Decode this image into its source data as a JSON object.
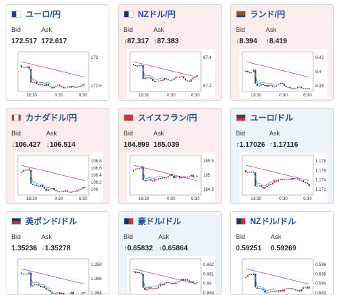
{
  "cards": [
    {
      "pair": "ユーロ/円",
      "bid_label": "Bid",
      "ask_label": "Ask",
      "bid": "172.517",
      "ask": "172.617",
      "bid_arrow": "",
      "ask_arrow": "",
      "bg": "#ffffff",
      "flag": "eu-jp-flag",
      "chart": {
        "yticks": [
          "173",
          "172.5"
        ],
        "xticks": [
          "18:30",
          "0:30",
          "6:30"
        ],
        "ylim": [
          172.15,
          173.3
        ]
      }
    },
    {
      "pair": "NZドル/円",
      "bid_label": "Bid",
      "ask_label": "Ask",
      "bid": "87.317",
      "ask": "87.383",
      "bid_arrow": "↓",
      "ask_arrow": "↑",
      "bg": "#fdecec",
      "flag": "nz-jp-flag",
      "chart": {
        "yticks": [
          "87.4",
          "87.2"
        ],
        "xticks": [
          "18:30",
          "0:30",
          "6:30"
        ],
        "ylim": [
          87.1,
          87.65
        ]
      }
    },
    {
      "pair": "ランド/円",
      "bid_label": "Bid",
      "ask_label": "Ask",
      "bid": "8.394",
      "ask": "8.419",
      "bid_arrow": "↓",
      "ask_arrow": "↑",
      "bg": "#fdecec",
      "flag": "za-jp-flag",
      "chart": {
        "yticks": [
          "8.42",
          "8.4",
          "8.38"
        ],
        "xticks": [
          "18:30",
          "0:30",
          "6:30"
        ],
        "ylim": [
          8.37,
          8.43
        ]
      }
    },
    {
      "pair": "カナダドル/円",
      "bid_label": "Bid",
      "ask_label": "Ask",
      "bid": "106.427",
      "ask": "106.514",
      "bid_arrow": "↓",
      "ask_arrow": "↓",
      "bg": "#fdecec",
      "flag": "ca-jp-flag",
      "chart": {
        "yticks": [
          "106.8",
          "106.6",
          "106.4",
          "106.2",
          "106"
        ],
        "xticks": [
          "18:30",
          "0:30",
          "6:30"
        ],
        "ylim": [
          105.95,
          106.9
        ]
      }
    },
    {
      "pair": "スイスフラン/円",
      "bid_label": "Bid",
      "ask_label": "Ask",
      "bid": "184.899",
      "ask": "185.039",
      "bid_arrow": "",
      "ask_arrow": "",
      "bg": "#fdecec",
      "flag": "ch-jp-flag",
      "chart": {
        "yticks": [
          "185.5",
          "185",
          "184.5"
        ],
        "xticks": [
          "18:30",
          "0:30",
          "6:30"
        ],
        "ylim": [
          184.3,
          186.0
        ]
      }
    },
    {
      "pair": "ユーロ/ドル",
      "bid_label": "Bid",
      "ask_label": "Ask",
      "bid": "1.17026",
      "ask": "1.17116",
      "bid_arrow": "↑",
      "ask_arrow": "↑",
      "bg": "#ecf3fb",
      "flag": "eu-us-flag",
      "chart": {
        "yticks": [
          "1.178",
          "1.176",
          "1.174",
          "1.172"
        ],
        "xticks": [
          "18:30",
          "0:30",
          "6:30"
        ],
        "ylim": [
          1.1695,
          1.1795
        ]
      }
    },
    {
      "pair": "英ポンド/ドル",
      "bid_label": "Bid",
      "ask_label": "Ask",
      "bid": "1.35236",
      "ask": "1.35278",
      "bid_arrow": "",
      "ask_arrow": "↓",
      "bg": "#ffffff",
      "flag": "gb-us-flag",
      "chart": {
        "yticks": [
          "1.358",
          "1.356",
          "1.354"
        ],
        "xticks": [],
        "ylim": [
          1.352,
          1.3595
        ]
      }
    },
    {
      "pair": "豪ドル/ドル",
      "bid_label": "Bid",
      "ask_label": "Ask",
      "bid": "0.65832",
      "ask": "0.65864",
      "bid_arrow": "↑",
      "ask_arrow": "↑",
      "bg": "#ecf3fb",
      "flag": "au-us-flag",
      "chart": {
        "yticks": [
          "0.662",
          "0.661",
          "0.66",
          "0.659"
        ],
        "xticks": [],
        "ylim": [
          0.6585,
          0.6625
        ]
      }
    },
    {
      "pair": "NZドル/ドル",
      "bid_label": "Bid",
      "ask_label": "Ask",
      "bid": "0.59251",
      "ask": "0.59269",
      "bid_arrow": "",
      "ask_arrow": "",
      "bg": "#ffffff",
      "flag": "nz-us-flag",
      "chart": {
        "yticks": [
          "0.596",
          "0.595",
          "0.594",
          "0.593"
        ],
        "xticks": [],
        "ylim": [
          0.5925,
          0.5965
        ]
      }
    }
  ]
}
